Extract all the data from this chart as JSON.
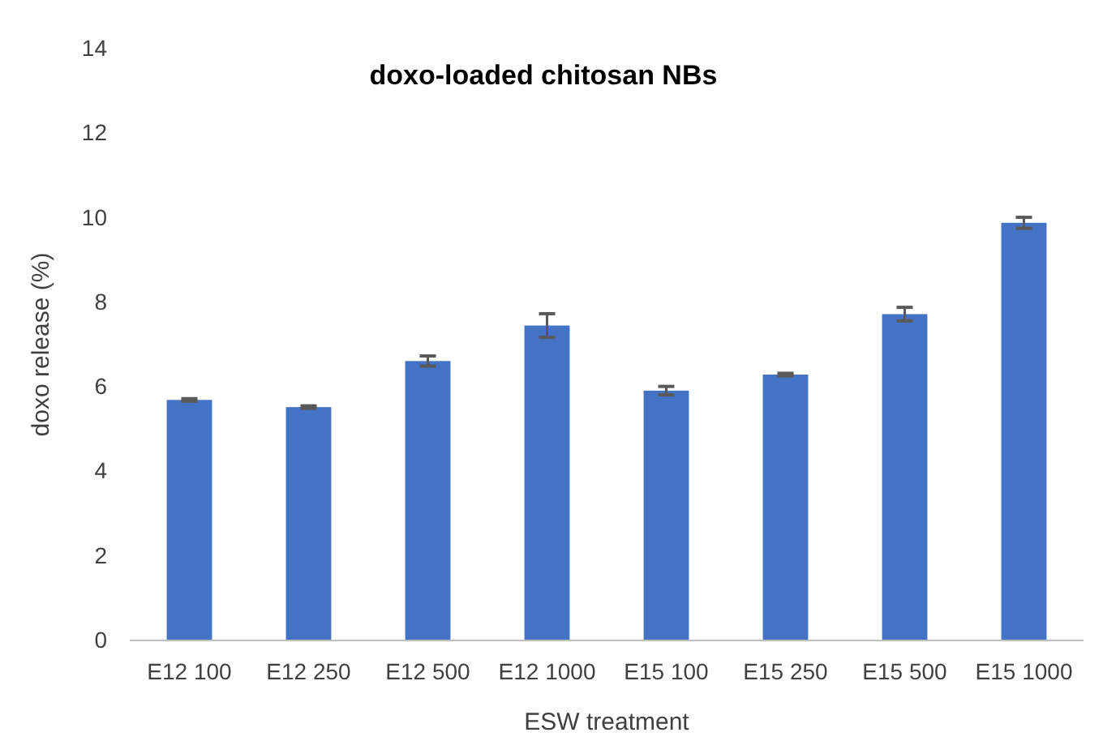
{
  "chart_data": {
    "type": "bar",
    "title": "doxo-loaded chitosan NBs",
    "xlabel": "ESW treatment",
    "ylabel": "doxo release (%)",
    "categories": [
      "E12 100",
      "E12 250",
      "E12 500",
      "E12 1000",
      "E15 100",
      "E15 250",
      "E15 500",
      "E15 1000"
    ],
    "values": [
      5.69,
      5.52,
      6.61,
      7.45,
      5.91,
      6.29,
      7.72,
      9.88
    ],
    "errors": [
      0.03,
      0.03,
      0.12,
      0.28,
      0.1,
      0.03,
      0.16,
      0.13
    ],
    "color": "#4472c4",
    "ylim": [
      0,
      14
    ],
    "yticks": [
      0,
      2,
      4,
      6,
      8,
      10,
      12,
      14
    ],
    "grid": false
  }
}
